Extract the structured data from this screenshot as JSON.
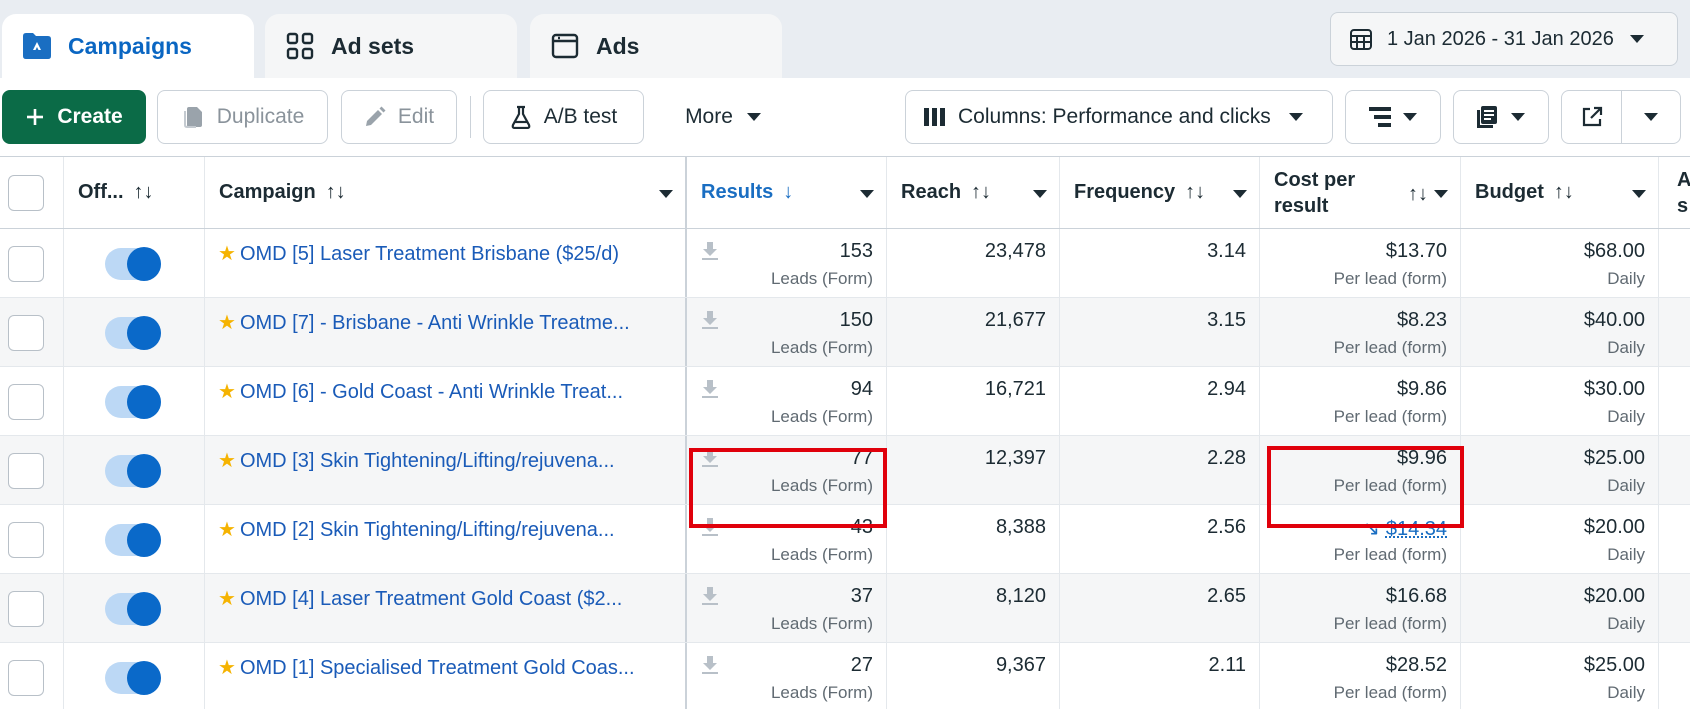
{
  "tabs": {
    "campaigns": "Campaigns",
    "ad_sets": "Ad sets",
    "ads": "Ads"
  },
  "date_range": "1 Jan 2026 - 31 Jan 2026",
  "toolbar": {
    "create": "Create",
    "duplicate": "Duplicate",
    "edit": "Edit",
    "ab_test": "A/B test",
    "more": "More",
    "columns": "Columns: Performance and clicks"
  },
  "columns": {
    "off": "Off...",
    "campaign": "Campaign",
    "results": "Results",
    "reach": "Reach",
    "frequency": "Frequency",
    "cost_per_result_line1": "Cost per",
    "cost_per_result_line2": "result",
    "budget": "Budget",
    "next_line1": "A",
    "next_line2": "s"
  },
  "sort_icons": {
    "sortable": "↑↓",
    "sorted_desc": "↓"
  },
  "rows": [
    {
      "name": "OMD [5] Laser Treatment Brisbane ($25/d)",
      "results": "153",
      "results_type": "Leads (Form)",
      "reach": "23,478",
      "frequency": "3.14",
      "cost": "$13.70",
      "cost_type": "Per lead (form)",
      "budget": "$68.00",
      "budget_type": "Daily"
    },
    {
      "name": "OMD [7] - Brisbane - Anti Wrinkle Treatme...",
      "results": "150",
      "results_type": "Leads (Form)",
      "reach": "21,677",
      "frequency": "3.15",
      "cost": "$8.23",
      "cost_type": "Per lead (form)",
      "budget": "$40.00",
      "budget_type": "Daily"
    },
    {
      "name": "OMD [6] - Gold Coast - Anti Wrinkle Treat...",
      "results": "94",
      "results_type": "Leads (Form)",
      "reach": "16,721",
      "frequency": "2.94",
      "cost": "$9.86",
      "cost_type": "Per lead (form)",
      "budget": "$30.00",
      "budget_type": "Daily"
    },
    {
      "name": "OMD [3] Skin Tightening/Lifting/rejuvena...",
      "results": "77",
      "results_type": "Leads (Form)",
      "reach": "12,397",
      "frequency": "2.28",
      "cost": "$9.96",
      "cost_type": "Per lead (form)",
      "budget": "$25.00",
      "budget_type": "Daily"
    },
    {
      "name": "OMD [2] Skin Tightening/Lifting/rejuvena...",
      "results": "43",
      "results_type": "Leads (Form)",
      "reach": "8,388",
      "frequency": "2.56",
      "cost": "$14.34",
      "cost_type": "Per lead (form)",
      "budget": "$20.00",
      "budget_type": "Daily"
    },
    {
      "name": "OMD [4] Laser Treatment Gold Coast ($2...",
      "results": "37",
      "results_type": "Leads (Form)",
      "reach": "8,120",
      "frequency": "2.65",
      "cost": "$16.68",
      "cost_type": "Per lead (form)",
      "budget": "$20.00",
      "budget_type": "Daily"
    },
    {
      "name": "OMD [1] Specialised Treatment Gold Coas...",
      "results": "27",
      "results_type": "Leads (Form)",
      "reach": "9,367",
      "frequency": "2.11",
      "cost": "$28.52",
      "cost_type": "Per lead (form)",
      "budget": "$25.00",
      "budget_type": "Daily"
    }
  ],
  "colors": {
    "accent": "#0a66c2",
    "create_bg": "#0b6b47",
    "highlight": "#e0000b",
    "star": "#f5b301"
  }
}
